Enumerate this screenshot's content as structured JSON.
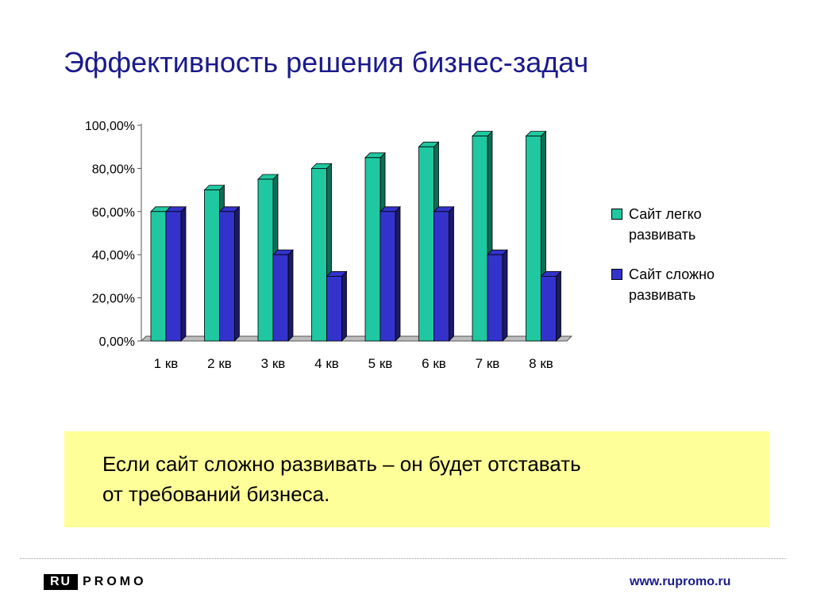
{
  "title": "Эффективность решения бизнес-задач",
  "chart_data": {
    "type": "bar",
    "categories": [
      "1 кв",
      "2 кв",
      "3 кв",
      "4 кв",
      "5 кв",
      "6 кв",
      "7 кв",
      "8 кв"
    ],
    "series": [
      {
        "name": "Сайт легко развивать",
        "values": [
          60,
          70,
          75,
          80,
          85,
          90,
          95,
          95
        ],
        "color": "#1fc8a0",
        "side_color": "#0e6e55"
      },
      {
        "name": "Сайт сложно развивать",
        "values": [
          60,
          60,
          40,
          30,
          60,
          60,
          40,
          30
        ],
        "color": "#3333cc",
        "side_color": "#1a1a66"
      }
    ],
    "y_ticks": [
      "0,00%",
      "20,00%",
      "40,00%",
      "60,00%",
      "80,00%",
      "100,00%"
    ],
    "ylim": [
      0,
      100
    ],
    "y_unit": "%",
    "grid": false,
    "legend_position": "right"
  },
  "legend": {
    "items": [
      {
        "label_line1": "Сайт легко",
        "label_line2": "развивать",
        "color": "#1fc8a0"
      },
      {
        "label_line1": "Сайт сложно",
        "label_line2": "развивать",
        "color": "#3333cc"
      }
    ]
  },
  "callout": {
    "line1": "Если сайт сложно развивать – он будет отставать",
    "line2": "от требований бизнеса.",
    "background": "#ffff99"
  },
  "footer": {
    "logo_left": "RU",
    "logo_right": "PROMO",
    "url": "www.rupromo.ru"
  }
}
